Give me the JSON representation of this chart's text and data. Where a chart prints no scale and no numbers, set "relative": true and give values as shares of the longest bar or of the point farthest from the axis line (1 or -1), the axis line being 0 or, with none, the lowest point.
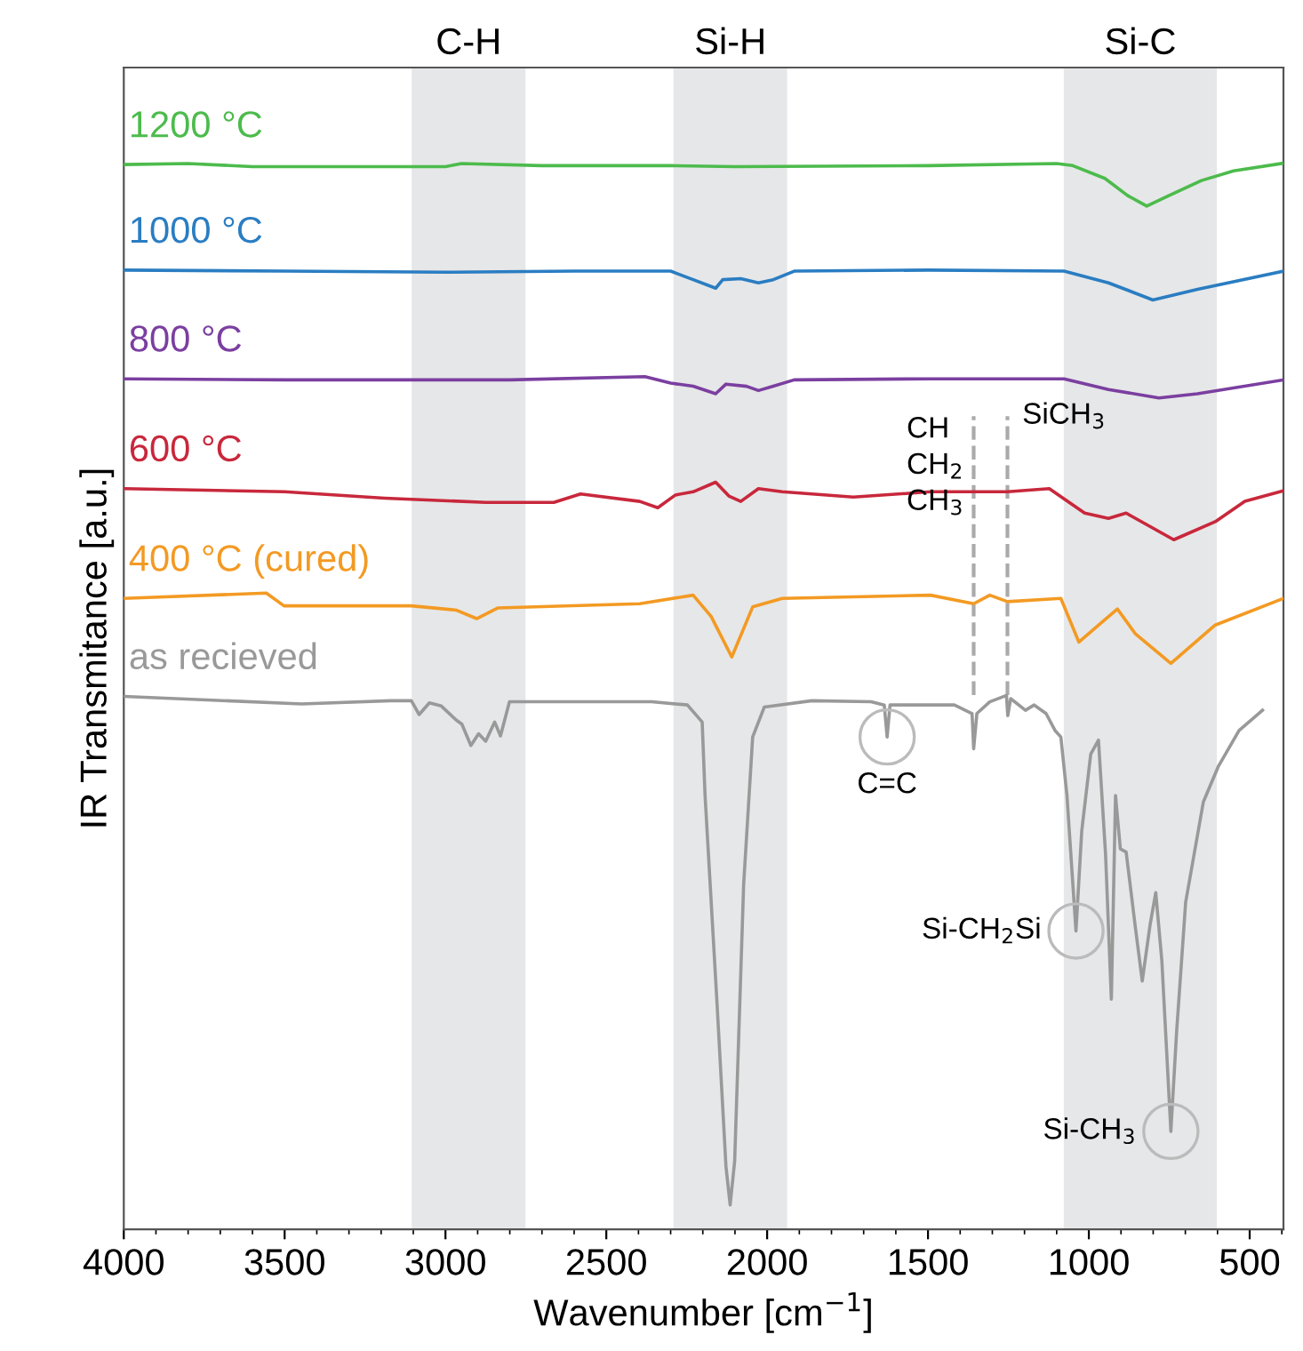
{
  "chart_data": {
    "type": "line",
    "relative": true,
    "ylabel": "IR Transmitance [a.u.]",
    "xlabel": "Wavenumber [cm$^{−1}$]",
    "xlim": [
      4000,
      395
    ],
    "xticks": [
      4000,
      3500,
      3000,
      2500,
      2000,
      1500,
      1000,
      500
    ],
    "grid": false,
    "legend": false,
    "marker": "none",
    "line_style": "solid",
    "bands": [
      {
        "axis": "x",
        "from": 3105,
        "to": 2751,
        "label": "C-H",
        "color": "#e6e7e8"
      },
      {
        "axis": "x",
        "from": 2291,
        "to": 1938,
        "label": "Si-H",
        "color": "#e6e7e8"
      },
      {
        "axis": "x",
        "from": 1078,
        "to": 602,
        "label": "Si-C",
        "color": "#e6e7e8"
      }
    ],
    "ref_lines": [
      {
        "axis": "x",
        "value": 1358,
        "label": "CH\nCH$_{2}$\nCH$_{3}$",
        "color": "#aaaaaa",
        "line_style": "dashed"
      },
      {
        "axis": "x",
        "value": 1253,
        "label": "SiCH$_{3}$",
        "color": "#aaaaaa",
        "line_style": "dashed"
      }
    ],
    "annotations": [
      {
        "text": "C=C",
        "x": 1627,
        "y": 0.462
      },
      {
        "text": "Si-CH$_{2}$Si",
        "x": 1040,
        "y": 0.28
      },
      {
        "text": "Si-CH$_{3}$",
        "x": 745,
        "y": 0.092
      }
    ],
    "series": [
      {
        "name": "1200 °C",
        "color": "#4cbb4c",
        "x": [
          4000,
          3800,
          3600,
          3000,
          2950,
          2700,
          2300,
          2100,
          1500,
          1100,
          1050,
          950,
          880,
          820,
          750,
          650,
          550,
          400
        ],
        "values": [
          0.999,
          1.0,
          0.997,
          0.997,
          1.0,
          0.998,
          0.998,
          0.997,
          0.998,
          1.0,
          0.998,
          0.986,
          0.97,
          0.96,
          0.97,
          0.984,
          0.993,
          1.0
        ]
      },
      {
        "name": "1000 °C",
        "color": "#2a7dc2",
        "x": [
          4000,
          3500,
          3000,
          2600,
          2300,
          2230,
          2160,
          2138,
          2082,
          2027,
          1981,
          1916,
          1500,
          1077,
          939,
          801,
          662,
          395
        ],
        "values": [
          0.9,
          0.899,
          0.898,
          0.899,
          0.899,
          0.891,
          0.883,
          0.891,
          0.892,
          0.888,
          0.891,
          0.899,
          0.9,
          0.899,
          0.888,
          0.872,
          0.882,
          0.899
        ]
      },
      {
        "name": "800 °C",
        "color": "#7b3fa0",
        "x": [
          4000,
          3500,
          2800,
          2380,
          2300,
          2230,
          2160,
          2128,
          2064,
          2027,
          1981,
          1916,
          1492,
          1077,
          939,
          782,
          662,
          395
        ],
        "values": [
          0.798,
          0.797,
          0.797,
          0.8,
          0.794,
          0.791,
          0.784,
          0.793,
          0.791,
          0.787,
          0.791,
          0.797,
          0.798,
          0.798,
          0.788,
          0.78,
          0.784,
          0.797
        ]
      },
      {
        "name": "600 °C",
        "color": "#c8283c",
        "x": [
          4000,
          3500,
          3189,
          2875,
          2663,
          2580,
          2396,
          2340,
          2285,
          2230,
          2160,
          2119,
          2082,
          2027,
          1953,
          1732,
          1492,
          1358,
          1253,
          1123,
          1013,
          939,
          884,
          736,
          607,
          515,
          395
        ],
        "values": [
          0.695,
          0.692,
          0.686,
          0.682,
          0.682,
          0.69,
          0.683,
          0.677,
          0.689,
          0.692,
          0.701,
          0.688,
          0.683,
          0.695,
          0.692,
          0.687,
          0.692,
          0.692,
          0.692,
          0.695,
          0.672,
          0.667,
          0.672,
          0.647,
          0.664,
          0.683,
          0.693
        ]
      },
      {
        "name": "400 °C (cured)",
        "color": "#f39a23",
        "x": [
          4000,
          3557,
          3502,
          3106,
          2967,
          2903,
          2838,
          2396,
          2230,
          2174,
          2110,
          2045,
          1953,
          1492,
          1358,
          1308,
          1253,
          1087,
          1031,
          958,
          911,
          856,
          745,
          607,
          395
        ],
        "values": [
          0.592,
          0.597,
          0.585,
          0.585,
          0.581,
          0.573,
          0.583,
          0.587,
          0.595,
          0.575,
          0.537,
          0.584,
          0.592,
          0.595,
          0.587,
          0.595,
          0.589,
          0.592,
          0.551,
          0.57,
          0.582,
          0.559,
          0.531,
          0.567,
          0.592
        ]
      },
      {
        "name": "as recieved",
        "color": "#999999",
        "x": [
          4000,
          3447,
          3170,
          3106,
          3082,
          3050,
          3013,
          2967,
          2949,
          2921,
          2897,
          2875,
          2847,
          2829,
          2801,
          2359,
          2248,
          2202,
          2193,
          2156,
          2128,
          2115,
          2101,
          2073,
          2045,
          2009,
          1861,
          1677,
          1636,
          1627,
          1618,
          1418,
          1363,
          1358,
          1348,
          1308,
          1256,
          1252,
          1243,
          1197,
          1170,
          1133,
          1105,
          1087,
          1068,
          1040,
          1022,
          994,
          970,
          948,
          930,
          917,
          902,
          884,
          856,
          834,
          810,
          792,
          773,
          745,
          727,
          699,
          644,
          598,
          533,
          460
        ],
        "values": [
          0.5,
          0.493,
          0.496,
          0.496,
          0.483,
          0.494,
          0.491,
          0.478,
          0.474,
          0.454,
          0.465,
          0.458,
          0.476,
          0.463,
          0.495,
          0.495,
          0.492,
          0.476,
          0.407,
          0.213,
          0.059,
          0.023,
          0.064,
          0.324,
          0.462,
          0.49,
          0.496,
          0.495,
          0.492,
          0.462,
          0.492,
          0.492,
          0.484,
          0.451,
          0.484,
          0.495,
          0.501,
          0.482,
          0.498,
          0.487,
          0.492,
          0.484,
          0.468,
          0.462,
          0.407,
          0.28,
          0.374,
          0.446,
          0.459,
          0.352,
          0.216,
          0.407,
          0.357,
          0.354,
          0.285,
          0.233,
          0.285,
          0.316,
          0.252,
          0.092,
          0.186,
          0.307,
          0.401,
          0.434,
          0.468,
          0.487
        ]
      }
    ]
  }
}
